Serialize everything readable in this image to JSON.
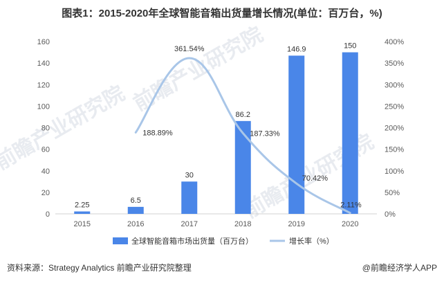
{
  "title": "图表1：2015-2020年全球智能音箱出货量增长情况(单位：百万台，%)",
  "source": "资料来源：Strategy Analytics 前瞻产业研究院整理",
  "credit": "@前瞻经济学人APP",
  "watermark": "前瞻产业研究院",
  "colors": {
    "bar": "#4a86e8",
    "line": "#a9c6e8",
    "axis": "#d0d0d0",
    "text": "#595959"
  },
  "chart_data": {
    "type": "bar",
    "categories": [
      "2015",
      "2016",
      "2017",
      "2018",
      "2019",
      "2020"
    ],
    "series": [
      {
        "name": "全球智能音箱市场出货量（百万台）",
        "type": "bar",
        "axis": "left",
        "values": [
          2.25,
          6.5,
          30,
          86.2,
          146.9,
          150
        ],
        "labels": [
          "2.25",
          "6.5",
          "30",
          "86.2",
          "146.9",
          "150"
        ]
      },
      {
        "name": "增长率（%）",
        "type": "line",
        "axis": "right",
        "values": [
          null,
          188.89,
          361.54,
          187.33,
          70.42,
          2.11
        ],
        "labels": [
          "",
          "188.89%",
          "361.54%",
          "187.33%",
          "70.42%",
          "2.11%"
        ]
      }
    ],
    "y_left": {
      "min": 0,
      "max": 160,
      "ticks": [
        "0",
        "20",
        "40",
        "60",
        "80",
        "100",
        "120",
        "140",
        "160"
      ]
    },
    "y_right": {
      "min": 0,
      "max": 400,
      "ticks": [
        "0%",
        "50%",
        "100%",
        "150%",
        "200%",
        "250%",
        "300%",
        "350%",
        "400%"
      ]
    },
    "grid": false,
    "legend": "bottom"
  }
}
